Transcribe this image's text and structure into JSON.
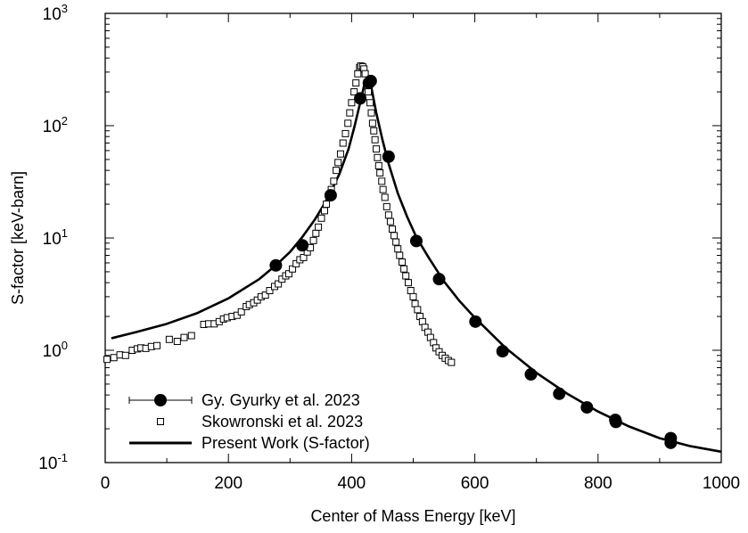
{
  "chart_data": {
    "type": "scatter",
    "title": "",
    "xlabel": "Center of Mass Energy [keV]",
    "ylabel": "S-factor [keV-barn]",
    "xlim": [
      0,
      1000
    ],
    "ylim": [
      0.1,
      1000
    ],
    "yscale": "log",
    "grid": false,
    "legend_position": "bottom-left",
    "x_ticks": [
      "0",
      "200",
      "400",
      "600",
      "800",
      "1000"
    ],
    "y_ticks": [
      {
        "base": "10",
        "exp": "-1"
      },
      {
        "base": "10",
        "exp": "0"
      },
      {
        "base": "10",
        "exp": "1"
      },
      {
        "base": "10",
        "exp": "2"
      },
      {
        "base": "10",
        "exp": "3"
      }
    ],
    "series": [
      {
        "name": "Gy. Gyurky et al. 2023",
        "marker": "filled-circle",
        "color": "#000000",
        "x": [
          277,
          320,
          366,
          414,
          428,
          431,
          460,
          505,
          542,
          601,
          645,
          691,
          737,
          782,
          828,
          829,
          918,
          918
        ],
        "y": [
          5.7,
          8.6,
          24,
          175,
          240,
          250,
          53,
          9.4,
          4.3,
          1.8,
          0.98,
          0.61,
          0.41,
          0.31,
          0.24,
          0.23,
          0.165,
          0.15
        ]
      },
      {
        "name": "Skowronski et al. 2023",
        "marker": "open-square",
        "color": "#000000",
        "x": [
          3,
          14,
          24,
          33,
          44,
          52,
          58,
          66,
          75,
          84,
          104,
          117,
          128,
          140,
          160,
          168,
          177,
          185,
          192,
          198,
          206,
          214,
          221,
          229,
          234,
          241,
          247,
          253,
          260,
          267,
          275,
          281,
          287,
          293,
          298,
          304,
          310,
          316,
          322,
          328,
          333,
          338,
          342,
          346,
          351,
          356,
          359,
          363,
          367,
          371,
          375,
          378,
          382,
          386,
          390,
          394,
          397,
          400,
          404,
          407,
          410,
          413,
          415,
          418,
          420,
          422,
          425,
          427,
          430,
          432,
          434,
          436,
          438,
          440,
          442,
          444,
          446,
          449,
          451,
          454,
          457,
          460,
          463,
          466,
          469,
          472,
          475,
          478,
          482,
          485,
          488,
          492,
          496,
          500,
          503,
          507,
          511,
          515,
          519,
          524,
          528,
          533,
          537,
          542,
          547,
          552,
          557,
          562
        ],
        "y": [
          0.83,
          0.86,
          0.91,
          0.9,
          1.0,
          1.03,
          1.05,
          1.04,
          1.08,
          1.1,
          1.25,
          1.2,
          1.3,
          1.35,
          1.7,
          1.72,
          1.72,
          1.8,
          1.9,
          1.95,
          2.0,
          2.05,
          2.2,
          2.45,
          2.55,
          2.65,
          2.8,
          3.0,
          3.1,
          3.4,
          3.7,
          3.9,
          4.3,
          4.6,
          4.8,
          5.3,
          5.9,
          6.4,
          6.7,
          7.5,
          8.2,
          9.5,
          11,
          12.5,
          15,
          17.5,
          20,
          23,
          27,
          32,
          40,
          47,
          56,
          70,
          85,
          105,
          130,
          160,
          200,
          240,
          290,
          330,
          340,
          335,
          320,
          290,
          240,
          200,
          160,
          130,
          105,
          90,
          75,
          62,
          52,
          44,
          38,
          32,
          27,
          23,
          19,
          16,
          14,
          12,
          10.5,
          9.2,
          8.0,
          7.0,
          6.1,
          5.3,
          4.6,
          4.0,
          3.4,
          3.0,
          2.6,
          2.3,
          2.0,
          1.8,
          1.6,
          1.45,
          1.3,
          1.17,
          1.05,
          0.97,
          0.9,
          0.85,
          0.81,
          0.78
        ]
      },
      {
        "name": "Present Work (S-factor)",
        "marker": "line",
        "color": "#000000",
        "x": [
          10,
          50,
          100,
          150,
          200,
          250,
          280,
          300,
          320,
          340,
          360,
          380,
          395,
          405,
          415,
          422,
          427,
          432,
          440,
          450,
          460,
          475,
          490,
          505,
          525,
          550,
          575,
          600,
          650,
          700,
          750,
          800,
          850,
          900,
          950,
          1000
        ],
        "y": [
          1.28,
          1.45,
          1.72,
          2.15,
          2.9,
          4.3,
          5.9,
          7.5,
          10.2,
          14.5,
          22,
          37,
          62,
          100,
          170,
          250,
          270,
          220,
          130,
          75,
          46,
          25,
          15.5,
          10.2,
          6.7,
          4.1,
          2.75,
          1.95,
          1.05,
          0.63,
          0.41,
          0.285,
          0.21,
          0.165,
          0.14,
          0.125
        ]
      }
    ]
  }
}
